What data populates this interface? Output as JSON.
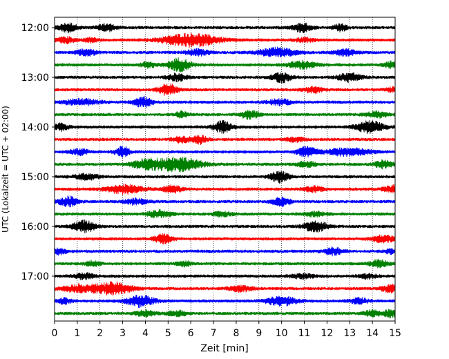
{
  "chart_data": {
    "type": "line",
    "title": "",
    "xlabel": "Zeit  [min]",
    "ylabel": "UTC (Lokalzeit = UTC + 02:00)",
    "xlim": [
      0,
      15
    ],
    "xticks": [
      "0",
      "1",
      "2",
      "3",
      "4",
      "5",
      "6",
      "7",
      "8",
      "9",
      "10",
      "11",
      "12",
      "13",
      "14",
      "15"
    ],
    "yticks": [
      "12:00",
      "13:00",
      "14:00",
      "15:00",
      "16:00",
      "17:00"
    ],
    "row_interval_minutes": 15,
    "row_colors": [
      "#000000",
      "#ff0000",
      "#0000ff",
      "#008000"
    ],
    "grid": {
      "x": true,
      "style": "dotted"
    },
    "rows": [
      {
        "start": "12:00",
        "color": "#000000",
        "events": [
          [
            0.6,
            6,
            0.4
          ],
          [
            2.3,
            5,
            0.4
          ],
          [
            10.9,
            6,
            0.4
          ],
          [
            12.6,
            5,
            0.3
          ]
        ]
      },
      {
        "start": "12:15",
        "color": "#ff0000",
        "events": [
          [
            0.5,
            4,
            0.4
          ],
          [
            1.6,
            3,
            0.3
          ],
          [
            6.0,
            9,
            1.2
          ],
          [
            11.0,
            3,
            0.4
          ]
        ]
      },
      {
        "start": "12:30",
        "color": "#0000ff",
        "events": [
          [
            1.4,
            5,
            0.4
          ],
          [
            6.3,
            4,
            0.5
          ],
          [
            9.8,
            6,
            0.8
          ],
          [
            12.8,
            4,
            0.5
          ]
        ]
      },
      {
        "start": "12:45",
        "color": "#008000",
        "events": [
          [
            4.1,
            4,
            0.3
          ],
          [
            5.5,
            9,
            0.5
          ],
          [
            10.9,
            5,
            0.6
          ],
          [
            14.8,
            4,
            0.3
          ]
        ]
      },
      {
        "start": "13:00",
        "color": "#000000",
        "events": [
          [
            5.4,
            5,
            0.4
          ],
          [
            10.0,
            7,
            0.4
          ],
          [
            13.0,
            6,
            0.5
          ]
        ]
      },
      {
        "start": "13:15",
        "color": "#ff0000",
        "events": [
          [
            5.0,
            8,
            0.4
          ],
          [
            11.4,
            4,
            0.4
          ],
          [
            14.9,
            3,
            0.3
          ]
        ]
      },
      {
        "start": "13:30",
        "color": "#0000ff",
        "events": [
          [
            1.2,
            4,
            0.8
          ],
          [
            3.9,
            7,
            0.4
          ],
          [
            9.9,
            4,
            0.5
          ]
        ]
      },
      {
        "start": "13:45",
        "color": "#008000",
        "events": [
          [
            5.6,
            4,
            0.3
          ],
          [
            8.6,
            6,
            0.4
          ],
          [
            14.2,
            4,
            0.5
          ]
        ]
      },
      {
        "start": "14:00",
        "color": "#000000",
        "events": [
          [
            0.3,
            5,
            0.3
          ],
          [
            7.4,
            8,
            0.4
          ],
          [
            13.9,
            8,
            0.6
          ]
        ]
      },
      {
        "start": "14:15",
        "color": "#ff0000",
        "events": [
          [
            5.6,
            4,
            0.4
          ],
          [
            6.4,
            6,
            0.3
          ],
          [
            10.6,
            3,
            0.4
          ]
        ]
      },
      {
        "start": "14:30",
        "color": "#0000ff",
        "events": [
          [
            1.1,
            4,
            0.4
          ],
          [
            3.0,
            8,
            0.3
          ],
          [
            11.1,
            7,
            0.4
          ],
          [
            12.9,
            5,
            1.0
          ]
        ]
      },
      {
        "start": "14:45",
        "color": "#008000",
        "events": [
          [
            4.0,
            6,
            0.6
          ],
          [
            5.4,
            10,
            1.0
          ],
          [
            11.1,
            4,
            0.4
          ],
          [
            14.5,
            5,
            0.4
          ]
        ]
      },
      {
        "start": "15:00",
        "color": "#000000",
        "events": [
          [
            1.4,
            4,
            0.5
          ],
          [
            9.9,
            8,
            0.4
          ]
        ]
      },
      {
        "start": "15:15",
        "color": "#ff0000",
        "events": [
          [
            3.1,
            6,
            0.8
          ],
          [
            5.2,
            5,
            0.4
          ],
          [
            11.4,
            4,
            0.4
          ],
          [
            14.9,
            5,
            0.4
          ]
        ]
      },
      {
        "start": "15:30",
        "color": "#0000ff",
        "events": [
          [
            0.6,
            7,
            0.4
          ],
          [
            3.6,
            4,
            0.5
          ],
          [
            10.0,
            6,
            0.4
          ]
        ]
      },
      {
        "start": "15:45",
        "color": "#008000",
        "events": [
          [
            4.6,
            5,
            0.5
          ],
          [
            7.4,
            3,
            0.4
          ],
          [
            11.5,
            3,
            0.5
          ]
        ]
      },
      {
        "start": "16:00",
        "color": "#000000",
        "events": [
          [
            1.3,
            8,
            0.5
          ],
          [
            11.5,
            8,
            0.5
          ]
        ]
      },
      {
        "start": "16:15",
        "color": "#ff0000",
        "events": [
          [
            4.8,
            6,
            0.4
          ],
          [
            14.5,
            5,
            0.5
          ]
        ]
      },
      {
        "start": "16:30",
        "color": "#0000ff",
        "events": [
          [
            0.2,
            4,
            0.3
          ],
          [
            12.3,
            5,
            0.4
          ],
          [
            14.8,
            3,
            0.3
          ]
        ]
      },
      {
        "start": "16:45",
        "color": "#008000",
        "events": [
          [
            1.7,
            4,
            0.3
          ],
          [
            5.7,
            4,
            0.3
          ],
          [
            14.3,
            5,
            0.4
          ]
        ]
      },
      {
        "start": "17:00",
        "color": "#000000",
        "events": [
          [
            1.3,
            4,
            0.4
          ],
          [
            10.9,
            3,
            0.5
          ],
          [
            13.8,
            3,
            0.4
          ]
        ]
      },
      {
        "start": "17:15",
        "color": "#ff0000",
        "events": [
          [
            1.1,
            5,
            0.8
          ],
          [
            2.6,
            8,
            0.8
          ],
          [
            8.2,
            4,
            0.5
          ],
          [
            14.8,
            5,
            0.4
          ]
        ]
      },
      {
        "start": "17:30",
        "color": "#0000ff",
        "events": [
          [
            0.4,
            4,
            0.3
          ],
          [
            3.8,
            8,
            0.6
          ],
          [
            10.0,
            6,
            0.7
          ],
          [
            13.4,
            4,
            0.4
          ]
        ]
      },
      {
        "start": "17:45",
        "color": "#008000",
        "events": [
          [
            4.0,
            4,
            0.4
          ],
          [
            5.4,
            4,
            0.4
          ],
          [
            14.0,
            4,
            0.4
          ],
          [
            14.8,
            5,
            0.3
          ]
        ]
      }
    ]
  }
}
